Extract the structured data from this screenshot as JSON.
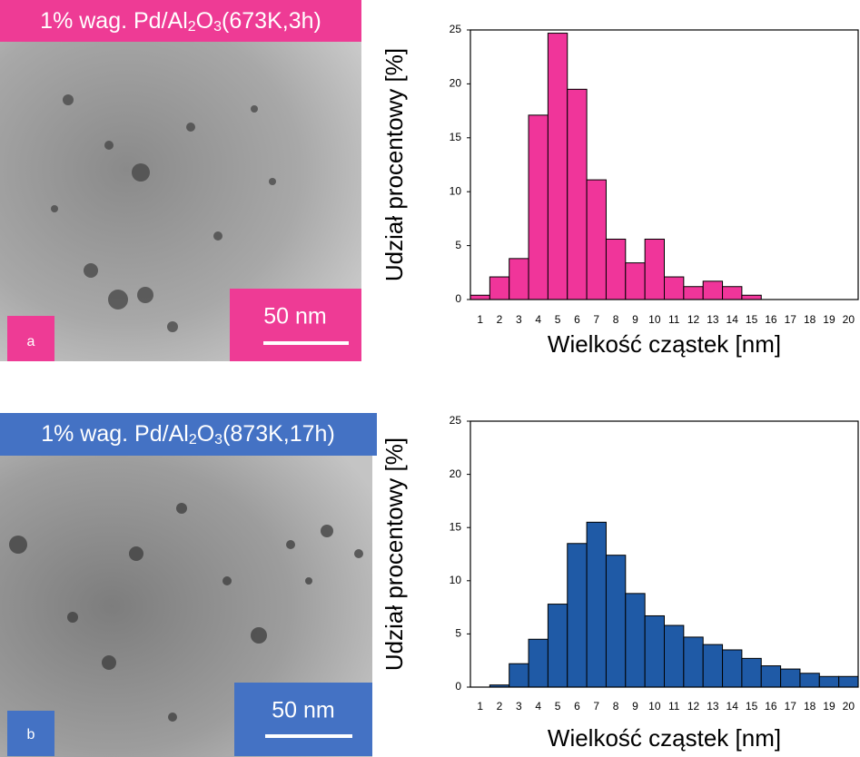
{
  "panels": [
    {
      "title_parts": [
        "1% wag. Pd/Al",
        "2",
        "O",
        "3",
        "(673K,3h)"
      ],
      "scale_bar": "50 nm",
      "letter": "a"
    },
    {
      "title_parts": [
        "1% wag. Pd/Al",
        "2",
        "O",
        "3",
        "(873K,17h)"
      ],
      "scale_bar": "50 nm",
      "letter": "b"
    }
  ],
  "chart_data": [
    {
      "type": "bar",
      "ylabel": "Udział procentowy [%]",
      "xlabel": "Wielkość cząstek [nm]",
      "categories": [
        1,
        2,
        3,
        4,
        5,
        6,
        7,
        8,
        9,
        10,
        11,
        12,
        13,
        14,
        15,
        16,
        17,
        18,
        19,
        20
      ],
      "values": [
        0.4,
        2.1,
        3.8,
        17.1,
        24.7,
        19.5,
        11.1,
        5.6,
        3.4,
        5.6,
        2.1,
        1.2,
        1.7,
        1.2,
        0.4,
        0,
        0,
        0,
        0,
        0
      ],
      "color": "#f0359a",
      "ylim": [
        0,
        25
      ],
      "yticks": [
        0,
        5,
        10,
        15,
        20,
        25
      ]
    },
    {
      "type": "bar",
      "ylabel": "Udział procentowy [%]",
      "xlabel": "Wielkość cząstek [nm]",
      "categories": [
        1,
        2,
        3,
        4,
        5,
        6,
        7,
        8,
        9,
        10,
        11,
        12,
        13,
        14,
        15,
        16,
        17,
        18,
        19,
        20
      ],
      "values": [
        0,
        0.2,
        2.2,
        4.5,
        7.8,
        13.5,
        15.5,
        12.4,
        8.8,
        6.7,
        5.8,
        4.7,
        4.0,
        3.5,
        2.7,
        2.0,
        1.7,
        1.3,
        1.0,
        1.0
      ],
      "color": "#1f5aa6",
      "ylim": [
        0,
        25
      ],
      "yticks": [
        0,
        5,
        10,
        15,
        20,
        25
      ]
    }
  ]
}
